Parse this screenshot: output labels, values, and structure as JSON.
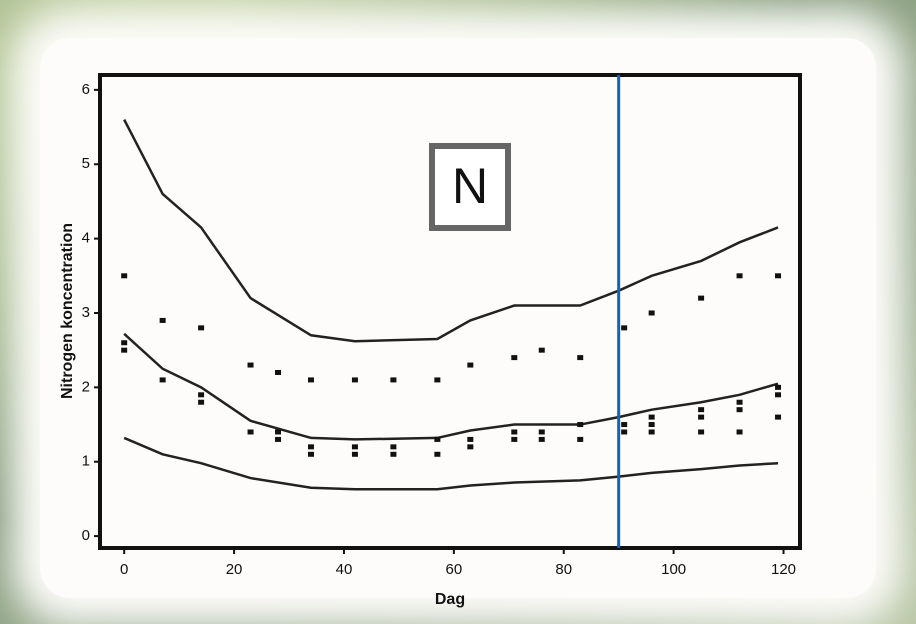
{
  "chart_data": {
    "type": "scatter",
    "x_label": "Dag",
    "y_label": "Nitrogen koncentration",
    "annotation": "N",
    "xlim": [
      -4.4,
      123
    ],
    "ylim": [
      -0.16,
      6.2
    ],
    "xticks": [
      0,
      20,
      40,
      60,
      80,
      100,
      120
    ],
    "yticks": [
      0,
      1,
      2,
      3,
      4,
      5,
      6
    ],
    "vline": {
      "x": 90,
      "color": "#1f5fb0"
    },
    "series": [
      {
        "type": "line",
        "color": "#222222",
        "x": [
          0,
          7,
          14,
          23,
          34,
          42,
          57,
          63,
          71,
          83,
          90,
          96,
          105,
          112,
          119
        ],
        "values": [
          5.6,
          4.6,
          4.15,
          3.2,
          2.7,
          2.62,
          2.65,
          2.9,
          3.1,
          3.1,
          3.3,
          3.5,
          3.7,
          3.95,
          4.15
        ]
      },
      {
        "type": "line",
        "color": "#222222",
        "x": [
          0,
          7,
          14,
          23,
          34,
          42,
          57,
          63,
          71,
          83,
          90,
          96,
          105,
          112,
          119
        ],
        "values": [
          2.72,
          2.25,
          2.0,
          1.55,
          1.32,
          1.3,
          1.32,
          1.42,
          1.5,
          1.5,
          1.6,
          1.7,
          1.8,
          1.9,
          2.05
        ]
      },
      {
        "type": "line",
        "color": "#222222",
        "x": [
          0,
          7,
          14,
          23,
          34,
          42,
          57,
          63,
          71,
          83,
          90,
          96,
          105,
          112,
          119
        ],
        "values": [
          1.32,
          1.1,
          0.98,
          0.78,
          0.65,
          0.63,
          0.63,
          0.68,
          0.72,
          0.75,
          0.8,
          0.85,
          0.9,
          0.95,
          0.98
        ]
      },
      {
        "type": "scatter",
        "color": "#111111",
        "x": [
          0,
          0,
          0,
          7,
          7,
          14,
          14,
          14,
          23,
          23,
          28,
          28,
          28,
          34,
          34,
          34,
          42,
          42,
          42,
          49,
          49,
          49,
          57,
          57,
          57,
          63,
          63,
          63,
          71,
          71,
          71,
          76,
          76,
          76,
          83,
          83,
          83,
          91,
          91,
          91,
          96,
          96,
          96,
          96,
          105,
          105,
          105,
          105,
          112,
          112,
          112,
          112,
          119,
          119,
          119,
          119
        ],
        "values": [
          3.5,
          2.6,
          2.5,
          2.9,
          2.1,
          2.8,
          1.9,
          1.8,
          2.3,
          1.4,
          2.2,
          1.4,
          1.3,
          2.1,
          1.2,
          1.1,
          2.1,
          1.2,
          1.1,
          2.1,
          1.2,
          1.1,
          2.1,
          1.3,
          1.1,
          2.3,
          1.3,
          1.2,
          2.4,
          1.4,
          1.3,
          2.5,
          1.4,
          1.3,
          2.4,
          1.5,
          1.3,
          2.8,
          1.5,
          1.4,
          3.0,
          1.6,
          1.5,
          1.4,
          3.2,
          1.7,
          1.6,
          1.4,
          3.5,
          1.8,
          1.7,
          1.4,
          3.5,
          2.0,
          1.9,
          1.6
        ]
      }
    ]
  }
}
